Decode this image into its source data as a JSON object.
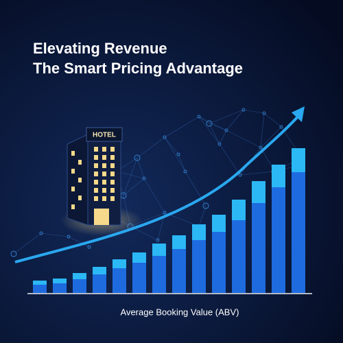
{
  "chart_data": {
    "type": "stacked_bar",
    "title": "Elevating Revenue",
    "subtitle": "The Smart Pricing Advantage",
    "xlabel": "Average Booking Value (ABV)",
    "annotations": [
      "HOTEL"
    ],
    "categories": [
      null,
      null,
      null,
      null,
      null,
      null,
      null,
      null,
      null,
      null,
      null,
      null,
      null,
      null
    ],
    "series": [
      {
        "color": "#1e6be0",
        "values": [
          12,
          14,
          20,
          27,
          36,
          44,
          54,
          64,
          77,
          89,
          106,
          131,
          154,
          176
        ]
      },
      {
        "color": "#2bb8f5",
        "values": [
          6,
          7,
          9,
          11,
          13,
          15,
          18,
          20,
          23,
          25,
          30,
          32,
          33,
          35
        ]
      }
    ],
    "ylim": [
      0,
      220
    ]
  }
}
